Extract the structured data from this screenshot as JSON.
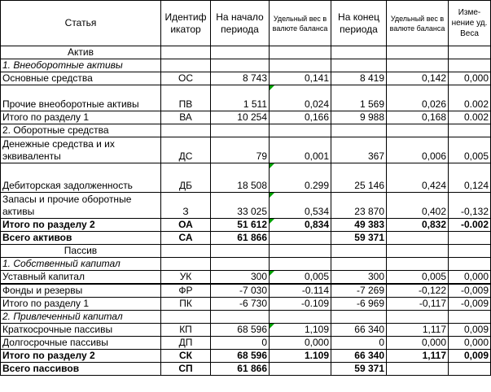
{
  "header": {
    "article": "Статья",
    "identifier": "Идентификатор",
    "start": "На начало периода",
    "weight_start": "Удельный вес в валюте баланса",
    "end": "На конец периода",
    "weight_end": "Удельный вес в валюте баланса",
    "change": "Изме-нение уд. Веса"
  },
  "rows": [
    {
      "type": "section",
      "c": [
        "Актив"
      ]
    },
    {
      "type": "group",
      "c": [
        "1. Внеоборотные активы"
      ]
    },
    {
      "type": "data",
      "c": [
        "Основные средства",
        "ОС",
        "8 743",
        "0,141",
        "8 419",
        "0,142",
        "0,000"
      ]
    },
    {
      "type": "data2",
      "c": [
        "Прочие внеоборотные активы",
        "ПВ",
        "1 511",
        "0,024",
        "1 569",
        "0,026",
        "0.002"
      ]
    },
    {
      "type": "data",
      "c": [
        "Итого по разделу 1",
        "ВА",
        "10 254",
        "0,166",
        "9 988",
        "0,168",
        "0.002"
      ]
    },
    {
      "type": "group-plain",
      "c": [
        "2. Оборотные средства"
      ]
    },
    {
      "type": "data2",
      "c": [
        "Денежные средства и их эквиваленты",
        "ДС",
        "79",
        "0,001",
        "367",
        "0,006",
        "0,005"
      ]
    },
    {
      "type": "data-tall",
      "c": [
        "Дебиторская задолженность",
        "ДБ",
        "18 508",
        "0.299",
        "25 146",
        "0,424",
        "0,124"
      ]
    },
    {
      "type": "data2",
      "c": [
        "Запасы и прочие оборотные активы",
        "З",
        "33 025",
        "0,534",
        "23 870",
        "0,402",
        "-0,132"
      ]
    },
    {
      "type": "bold",
      "c": [
        "Итого по разделу 2",
        "ОА",
        "51 612",
        "0,834",
        "49 383",
        "0,832",
        "-0.002"
      ]
    },
    {
      "type": "bold",
      "c": [
        "Всего активов",
        "СА",
        "61 866",
        "",
        "59 371",
        "",
        ""
      ]
    },
    {
      "type": "section",
      "c": [
        "Пассив"
      ]
    },
    {
      "type": "group",
      "c": [
        "1. Собственный капитал"
      ]
    },
    {
      "type": "data",
      "c": [
        "Уставный капитал",
        "УК",
        "300",
        "0,005",
        "300",
        "0,005",
        "0,000"
      ]
    },
    {
      "type": "data",
      "c": [
        "Фонды и резервы",
        "ФР",
        "-7 030",
        "-0.114",
        "-7 269",
        "-0,122",
        "-0,009"
      ]
    },
    {
      "type": "data",
      "c": [
        "Итого по разделу 1",
        "ПК",
        "-6 730",
        "-0.109",
        "-6 969",
        "-0,117",
        "-0,009"
      ]
    },
    {
      "type": "group",
      "c": [
        "2. Привлеченный капитал"
      ]
    },
    {
      "type": "data",
      "c": [
        "Краткосрочные пассивы",
        "КП",
        "68 596",
        "1,109",
        "66 340",
        "1,117",
        "0,009"
      ]
    },
    {
      "type": "data",
      "c": [
        "Долгосрочные пассивы",
        "ДП",
        "0",
        "0,000",
        "0",
        "0,000",
        "0,000"
      ]
    },
    {
      "type": "bold",
      "c": [
        "Итого по разделу 2",
        "СК",
        "68 596",
        "1.109",
        "66 340",
        "1,117",
        "0,009"
      ]
    },
    {
      "type": "bold",
      "c": [
        "Всего пассивов",
        "СП",
        "61 866",
        "",
        "59 371",
        "",
        ""
      ]
    }
  ]
}
